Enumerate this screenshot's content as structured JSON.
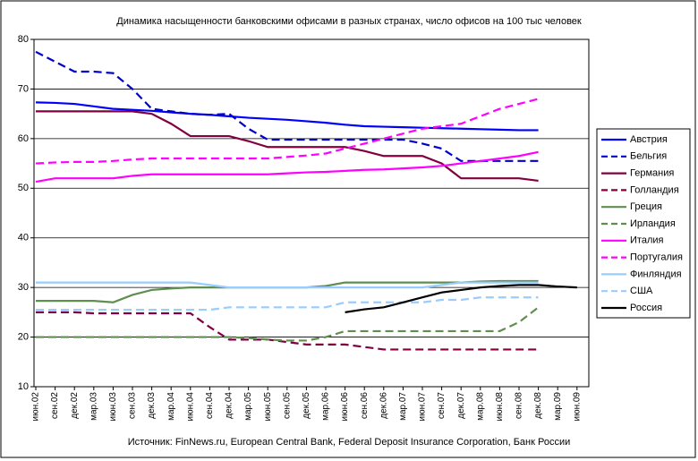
{
  "chart_data": {
    "type": "line",
    "title": "Динамика насыщенности банковскими офисами в разных странах, число офисов на 100 тыс человек",
    "source": "Источник: FinNews.ru, European Central Bank, Federal Deposit Insurance Corporation, Банк России",
    "categories": [
      "июн.02",
      "сен.02",
      "дек.02",
      "мар.03",
      "июн.03",
      "сен.03",
      "дек.03",
      "мар.04",
      "июн.04",
      "сен.04",
      "дек.04",
      "мар.05",
      "июн.05",
      "сен.05",
      "дек.05",
      "мар.06",
      "июн.06",
      "сен.06",
      "дек.06",
      "мар.07",
      "июн.07",
      "сен.07",
      "дек.07",
      "мар.08",
      "июн.08",
      "сен.08",
      "дек.08",
      "мар.09",
      "июн.09"
    ],
    "ylim": [
      10,
      80
    ],
    "yticks": [
      10,
      20,
      30,
      40,
      50,
      60,
      70,
      80
    ],
    "grid": true,
    "legend": "right",
    "series": [
      {
        "name": "Австрия",
        "color": "#0000ff",
        "dash": false,
        "values": [
          67.3,
          67.2,
          67,
          66.5,
          66,
          65.8,
          65.6,
          65.3,
          65,
          64.8,
          64.5,
          64.2,
          64,
          63.8,
          63.5,
          63.2,
          62.8,
          62.5,
          62.4,
          62.3,
          62.2,
          62.1,
          62,
          61.9,
          61.8,
          61.7,
          61.7,
          null,
          null
        ]
      },
      {
        "name": "Бельгия",
        "color": "#0000cc",
        "dash": true,
        "values": [
          77.5,
          75.5,
          73.5,
          73.5,
          73.2,
          70,
          66,
          65.5,
          65,
          64.8,
          65,
          62,
          59.8,
          59.8,
          59.8,
          59.8,
          59.8,
          59.8,
          59.8,
          59.8,
          59,
          58,
          55.5,
          55.5,
          55.5,
          55.5,
          55.5,
          null,
          null
        ]
      },
      {
        "name": "Германия",
        "color": "#800040",
        "dash": false,
        "values": [
          65.5,
          65.5,
          65.5,
          65.5,
          65.5,
          65.5,
          65,
          63,
          60.5,
          60.5,
          60.5,
          59.5,
          58.3,
          58.3,
          58.3,
          58.3,
          58.3,
          57.5,
          56.5,
          56.5,
          56.5,
          55,
          52,
          52,
          52,
          52,
          51.5,
          null,
          null
        ]
      },
      {
        "name": "Голландия",
        "color": "#800040",
        "dash": true,
        "values": [
          25,
          25,
          25,
          24.8,
          24.8,
          24.8,
          24.8,
          24.8,
          24.8,
          22,
          19.5,
          19.5,
          19.5,
          19,
          18.5,
          18.5,
          18.5,
          18,
          17.5,
          17.5,
          17.5,
          17.5,
          17.5,
          17.5,
          17.5,
          17.5,
          17.5,
          null,
          null
        ]
      },
      {
        "name": "Греция",
        "color": "#5f8f4f",
        "dash": false,
        "values": [
          27.3,
          27.3,
          27.3,
          27.3,
          27,
          28.5,
          29.5,
          29.8,
          30,
          30,
          30,
          30,
          30,
          30,
          30,
          30.3,
          31,
          31,
          31,
          31,
          31,
          31,
          31,
          31.2,
          31.3,
          31.3,
          31.3,
          null,
          null
        ]
      },
      {
        "name": "Ирландия",
        "color": "#5f8f4f",
        "dash": true,
        "values": [
          20,
          20,
          20,
          20,
          20,
          20,
          20,
          20,
          20,
          20,
          20,
          19.8,
          19.5,
          19.3,
          19.3,
          20,
          21.2,
          21.2,
          21.2,
          21.2,
          21.2,
          21.2,
          21.2,
          21.2,
          21.2,
          23,
          26,
          null,
          null
        ]
      },
      {
        "name": "Италия",
        "color": "#ff00ff",
        "dash": false,
        "values": [
          51.3,
          52,
          52,
          52,
          52,
          52.5,
          52.8,
          52.8,
          52.8,
          52.8,
          52.8,
          52.8,
          52.8,
          53,
          53.2,
          53.3,
          53.5,
          53.7,
          53.8,
          54,
          54.2,
          54.5,
          55,
          55.5,
          56,
          56.5,
          57.3,
          null,
          null
        ]
      },
      {
        "name": "Португалия",
        "color": "#ff00ff",
        "dash": true,
        "values": [
          55,
          55.2,
          55.3,
          55.3,
          55.5,
          55.8,
          56,
          56,
          56,
          56,
          56,
          56,
          56,
          56.3,
          56.6,
          57,
          58,
          59,
          60,
          61,
          62,
          62.5,
          63,
          64.5,
          66,
          67,
          68,
          null,
          null
        ]
      },
      {
        "name": "Финляндия",
        "color": "#99ccff",
        "dash": false,
        "values": [
          31,
          31,
          31,
          31,
          31,
          31,
          31,
          31,
          31,
          30.5,
          30,
          30,
          30,
          30,
          30,
          30,
          30,
          30,
          30,
          30,
          30,
          30.5,
          31,
          31,
          31,
          31,
          31,
          null,
          null
        ]
      },
      {
        "name": "США",
        "color": "#99ccff",
        "dash": true,
        "values": [
          25.5,
          25.5,
          25.5,
          25.5,
          25.5,
          25.5,
          25.5,
          25.5,
          25.5,
          25.5,
          26,
          26,
          26,
          26,
          26,
          26,
          27,
          27,
          27,
          27,
          27,
          27.5,
          27.5,
          28,
          28,
          28,
          28,
          null,
          null
        ]
      },
      {
        "name": "Россия",
        "color": "#000000",
        "dash": false,
        "values": [
          null,
          null,
          null,
          null,
          null,
          null,
          null,
          null,
          null,
          null,
          null,
          null,
          null,
          null,
          null,
          null,
          25,
          25.6,
          26,
          27,
          28,
          29,
          29.5,
          30,
          30.3,
          30.5,
          30.5,
          30.2,
          30
        ]
      }
    ]
  }
}
